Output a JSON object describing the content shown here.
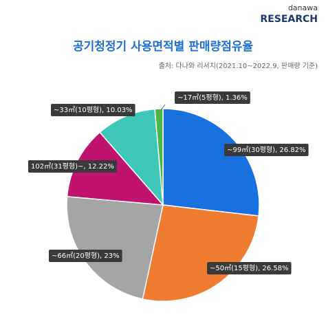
{
  "logo": {
    "top": "danawa",
    "bottom": "RESEARCH"
  },
  "chart_data": {
    "type": "pie",
    "title": "공기청정기 사용면적별 판매량점유율",
    "subtitle": "출처: 다나와 리서치(2021.10~2022.9, 판매량 기준)",
    "values": [
      26.82,
      26.58,
      23,
      12.22,
      10.03,
      1.36
    ],
    "value_labels": [
      "~99㎡(30평형), 26.82%",
      "~50㎡(15평형), 26.58%",
      "~66㎡(20평형), 23%",
      "102㎡(31평형)~, 12.22%",
      "~33㎡(10평형), 10.03%",
      "~17㎡(5평형), 1.36%"
    ],
    "colors": [
      "#1b70e0",
      "#ef7c30",
      "#a5a5a5",
      "#c0136d",
      "#3dc7b7",
      "#4bb648"
    ]
  }
}
